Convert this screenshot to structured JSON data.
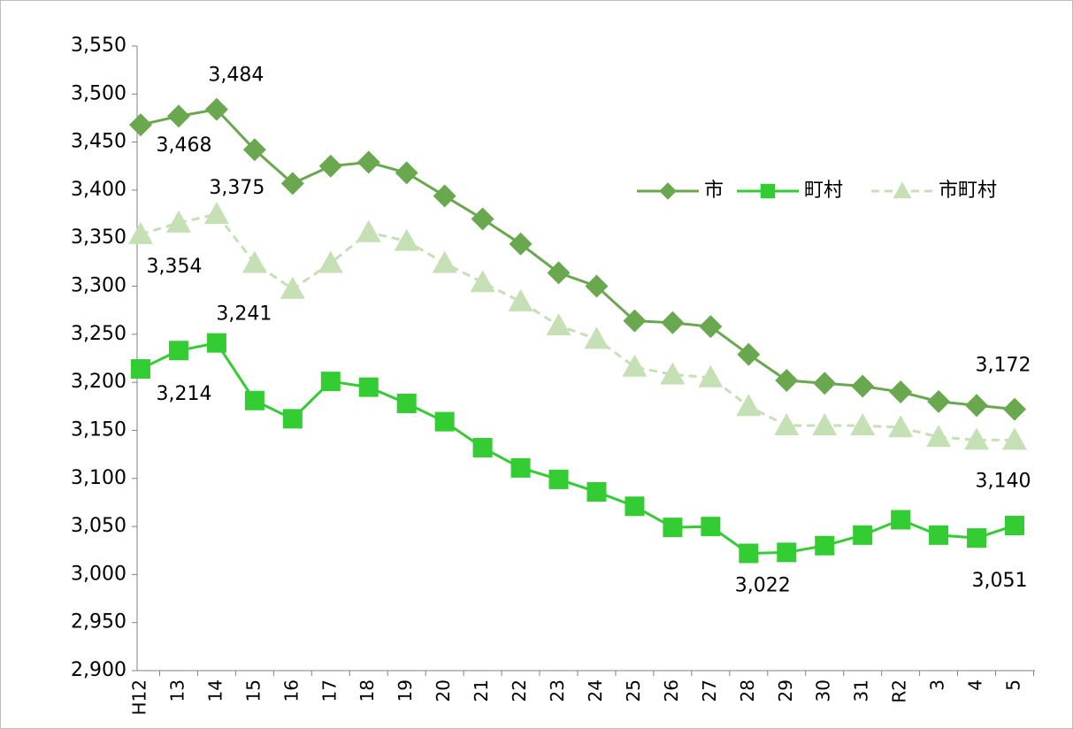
{
  "chart_data": {
    "type": "line",
    "categories": [
      "H12",
      "13",
      "14",
      "15",
      "16",
      "17",
      "18",
      "19",
      "20",
      "21",
      "22",
      "23",
      "24",
      "25",
      "26",
      "27",
      "28",
      "29",
      "30",
      "31",
      "R2",
      "3",
      "4",
      "5"
    ],
    "series": [
      {
        "name": "市",
        "color": "#6aa84f",
        "marker": "diamond",
        "dashed": false,
        "values": [
          3468,
          3477,
          3484,
          3442,
          3407,
          3425,
          3429,
          3418,
          3394,
          3370,
          3344,
          3314,
          3300,
          3264,
          3262,
          3258,
          3229,
          3202,
          3199,
          3196,
          3190,
          3180,
          3176,
          3172
        ],
        "value_labels": [
          "3,468",
          null,
          "3,484",
          null,
          null,
          null,
          null,
          null,
          null,
          null,
          null,
          null,
          null,
          null,
          null,
          null,
          null,
          null,
          null,
          null,
          null,
          null,
          null,
          "3,172"
        ]
      },
      {
        "name": "町村",
        "color": "#33cc33",
        "marker": "square",
        "dashed": false,
        "values": [
          3214,
          3233,
          3241,
          3181,
          3162,
          3201,
          3195,
          3178,
          3159,
          3132,
          3111,
          3099,
          3086,
          3071,
          3049,
          3050,
          3022,
          3023,
          3030,
          3041,
          3057,
          3041,
          3038,
          3051
        ],
        "value_labels": [
          "3,214",
          null,
          "3,241",
          null,
          null,
          null,
          null,
          null,
          null,
          null,
          null,
          null,
          null,
          null,
          null,
          null,
          "3,022",
          null,
          null,
          null,
          null,
          null,
          null,
          "3,051"
        ]
      },
      {
        "name": "市町村",
        "color": "#c5e0b4",
        "marker": "triangle",
        "dashed": true,
        "values": [
          3354,
          3366,
          3375,
          3324,
          3297,
          3324,
          3356,
          3347,
          3324,
          3304,
          3284,
          3259,
          3245,
          3216,
          3208,
          3205,
          3175,
          3155,
          3155,
          3155,
          3153,
          3143,
          3140,
          3140
        ],
        "value_labels": [
          "3,354",
          null,
          "3,375",
          null,
          null,
          null,
          null,
          null,
          null,
          null,
          null,
          null,
          null,
          null,
          null,
          null,
          null,
          null,
          null,
          null,
          null,
          null,
          null,
          "3,140"
        ]
      }
    ],
    "ylim": [
      2900,
      3550
    ],
    "yticks": [
      {
        "value": 2900,
        "label": "2,900"
      },
      {
        "value": 2950,
        "label": "2,950"
      },
      {
        "value": 3000,
        "label": "3,000"
      },
      {
        "value": 3050,
        "label": "3,050"
      },
      {
        "value": 3100,
        "label": "3,100"
      },
      {
        "value": 3150,
        "label": "3,150"
      },
      {
        "value": 3200,
        "label": "3,200"
      },
      {
        "value": 3250,
        "label": "3,250"
      },
      {
        "value": 3300,
        "label": "3,300"
      },
      {
        "value": 3350,
        "label": "3,350"
      },
      {
        "value": 3400,
        "label": "3,400"
      },
      {
        "value": 3450,
        "label": "3,450"
      },
      {
        "value": 3500,
        "label": "3,500"
      },
      {
        "value": 3550,
        "label": "3,550"
      }
    ],
    "grid": false,
    "legend": "upper right"
  }
}
